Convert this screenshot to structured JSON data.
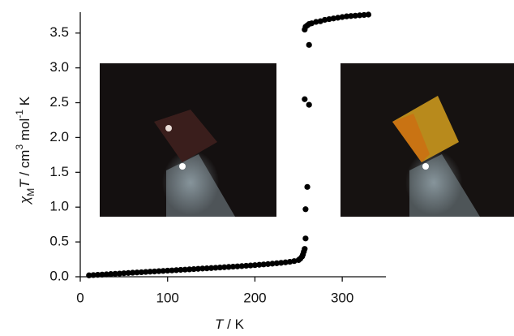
{
  "chart_data": {
    "type": "scatter",
    "xlabel": [
      "T",
      " / K"
    ],
    "ylabel": [
      "χ",
      "M",
      "T",
      " / cm",
      "3",
      " mol",
      "-1",
      " K"
    ],
    "xlim": [
      0,
      350
    ],
    "ylim": [
      0,
      3.8
    ],
    "xticks": [
      0,
      100,
      200,
      300
    ],
    "yticks": [
      {
        "value": 0,
        "label": "0.0"
      },
      0.5,
      {
        "value": 1,
        "label": "1.0"
      },
      1.5,
      {
        "value": 2,
        "label": "2.0"
      },
      2.5,
      {
        "value": 3,
        "label": "3.0"
      },
      3.5
    ],
    "series": [
      {
        "color": "#000000",
        "x": [
          10,
          15,
          20,
          25,
          30,
          35,
          40,
          45,
          50,
          55,
          60,
          65,
          70,
          75,
          80,
          85,
          90,
          95,
          100,
          105,
          110,
          115,
          120,
          125,
          130,
          135,
          140,
          145,
          150,
          155,
          160,
          165,
          170,
          175,
          180,
          185,
          190,
          195,
          200,
          205,
          210,
          215,
          220,
          225,
          230,
          235,
          240,
          245,
          250,
          252,
          254,
          255,
          256,
          257,
          258,
          258,
          260,
          257,
          262,
          262,
          257,
          258,
          260,
          262,
          265,
          270,
          275,
          280,
          285,
          290,
          295,
          300,
          305,
          310,
          315,
          320,
          325,
          330
        ],
        "values": [
          0.02,
          0.024,
          0.028,
          0.031,
          0.035,
          0.039,
          0.043,
          0.046,
          0.05,
          0.054,
          0.058,
          0.061,
          0.065,
          0.069,
          0.073,
          0.076,
          0.08,
          0.084,
          0.088,
          0.091,
          0.095,
          0.099,
          0.103,
          0.106,
          0.11,
          0.114,
          0.118,
          0.121,
          0.125,
          0.129,
          0.133,
          0.137,
          0.141,
          0.145,
          0.149,
          0.153,
          0.158,
          0.162,
          0.167,
          0.172,
          0.177,
          0.182,
          0.188,
          0.194,
          0.2,
          0.207,
          0.215,
          0.225,
          0.24,
          0.26,
          0.29,
          0.32,
          0.36,
          0.4,
          0.55,
          0.97,
          1.29,
          2.55,
          2.47,
          3.33,
          3.55,
          3.59,
          3.61,
          3.63,
          3.64,
          3.66,
          3.67,
          3.69,
          3.7,
          3.71,
          3.72,
          3.73,
          3.74,
          3.745,
          3.75,
          3.755,
          3.76,
          3.765
        ]
      }
    ]
  }
}
